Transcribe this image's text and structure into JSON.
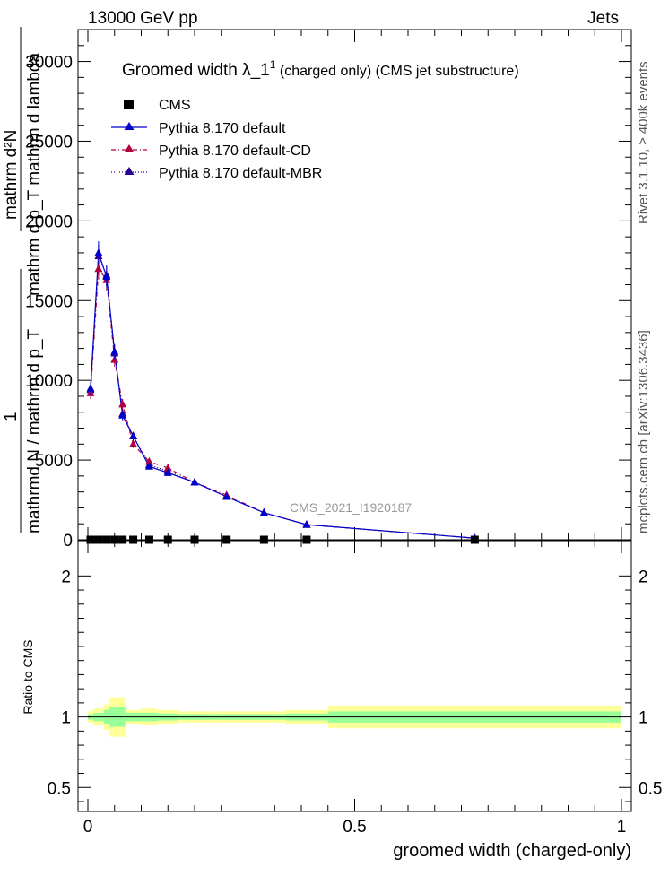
{
  "header": {
    "left": "13000 GeV pp",
    "right": "Jets"
  },
  "side_labels": {
    "rivet": "Rivet 3.1.10, ≥ 400k events",
    "mcplots": "mcplots.cern.ch [arXiv:1306.3436]"
  },
  "colors": {
    "cms": "#000000",
    "default": "#0000cc",
    "cd": "#b00040",
    "mbr": "#2a0090",
    "band_inner": "#99ff99",
    "band_outer": "#ffff99"
  },
  "chart_data": [
    {
      "type": "line",
      "title_main": "Groomed width  λ_1",
      "title_sup": "1",
      "title_tail": " (charged only) (CMS jet substructure)",
      "ylabel_top": "mathrm d²N",
      "ylabel_top2": "mathrm d p_T mathrm d lambda",
      "ylabel_bottom_1": "1",
      "ylabel_bottom_2": "mathrmd N / mathrm d p_T",
      "analysis_tag": "CMS_2021_I1920187",
      "xlim": [
        0,
        1
      ],
      "ylim": [
        0,
        32000
      ],
      "ytick_labels": [
        "0",
        "5000",
        "10000",
        "15000",
        "20000",
        "25000",
        "30000"
      ],
      "ytick_values": [
        0,
        5000,
        10000,
        15000,
        20000,
        25000,
        30000
      ],
      "legend_entries": [
        "CMS",
        "Pythia 8.170 default",
        "Pythia 8.170 default-CD",
        "Pythia 8.170 default-MBR"
      ],
      "series": [
        {
          "name": "CMS",
          "x": [
            0.005,
            0.02,
            0.035,
            0.05,
            0.065,
            0.085,
            0.115,
            0.15,
            0.2,
            0.26,
            0.33,
            0.41,
            0.725
          ],
          "values": [
            0,
            0,
            0,
            0,
            0,
            0,
            0,
            0,
            0,
            0,
            0,
            0,
            0
          ]
        },
        {
          "name": "Pythia 8.170 default",
          "x": [
            0.005,
            0.02,
            0.035,
            0.05,
            0.065,
            0.085,
            0.115,
            0.15,
            0.2,
            0.26,
            0.33,
            0.41,
            0.725
          ],
          "values": [
            9500,
            18000,
            16500,
            11800,
            7800,
            6500,
            4600,
            4200,
            3600,
            2700,
            1700,
            950,
            100
          ]
        },
        {
          "name": "Pythia 8.170 default-CD",
          "x": [
            0.005,
            0.02,
            0.035,
            0.05,
            0.065,
            0.085,
            0.115,
            0.15,
            0.2,
            0.26,
            0.33,
            0.41,
            0.725
          ],
          "values": [
            9200,
            17000,
            16300,
            11300,
            8500,
            6000,
            4900,
            4500,
            3600,
            2800,
            1700,
            950,
            100
          ]
        },
        {
          "name": "Pythia 8.170 default-MBR",
          "x": [
            0.005,
            0.02,
            0.035,
            0.05,
            0.065,
            0.085,
            0.115,
            0.15,
            0.2,
            0.26,
            0.33,
            0.41,
            0.725
          ],
          "values": [
            9400,
            17800,
            16600,
            11700,
            7900,
            6500,
            4700,
            4300,
            3600,
            2700,
            1700,
            950,
            100
          ]
        }
      ]
    },
    {
      "type": "area",
      "ylabel": "Ratio to CMS",
      "xlabel": "groomed width (charged-only)",
      "xlim": [
        0,
        1
      ],
      "ylim": [
        0.33,
        2.25
      ],
      "ytick_labels": [
        "0.5",
        "1",
        "2"
      ],
      "ytick_values": [
        0.5,
        1,
        2
      ],
      "xtick_labels": [
        "0",
        "0.5",
        "1"
      ],
      "xtick_values": [
        0,
        0.5,
        1
      ],
      "band_edges": [
        0,
        0.01,
        0.03,
        0.04,
        0.07,
        0.1,
        0.13,
        0.17,
        0.23,
        0.29,
        0.37,
        0.45,
        1.0
      ],
      "band_inner_halfwidth": [
        0.02,
        0.03,
        0.05,
        0.07,
        0.03,
        0.03,
        0.025,
        0.02,
        0.02,
        0.02,
        0.025,
        0.04
      ],
      "band_outer_halfwidth": [
        0.04,
        0.06,
        0.09,
        0.14,
        0.05,
        0.06,
        0.05,
        0.04,
        0.04,
        0.04,
        0.05,
        0.08
      ]
    }
  ]
}
